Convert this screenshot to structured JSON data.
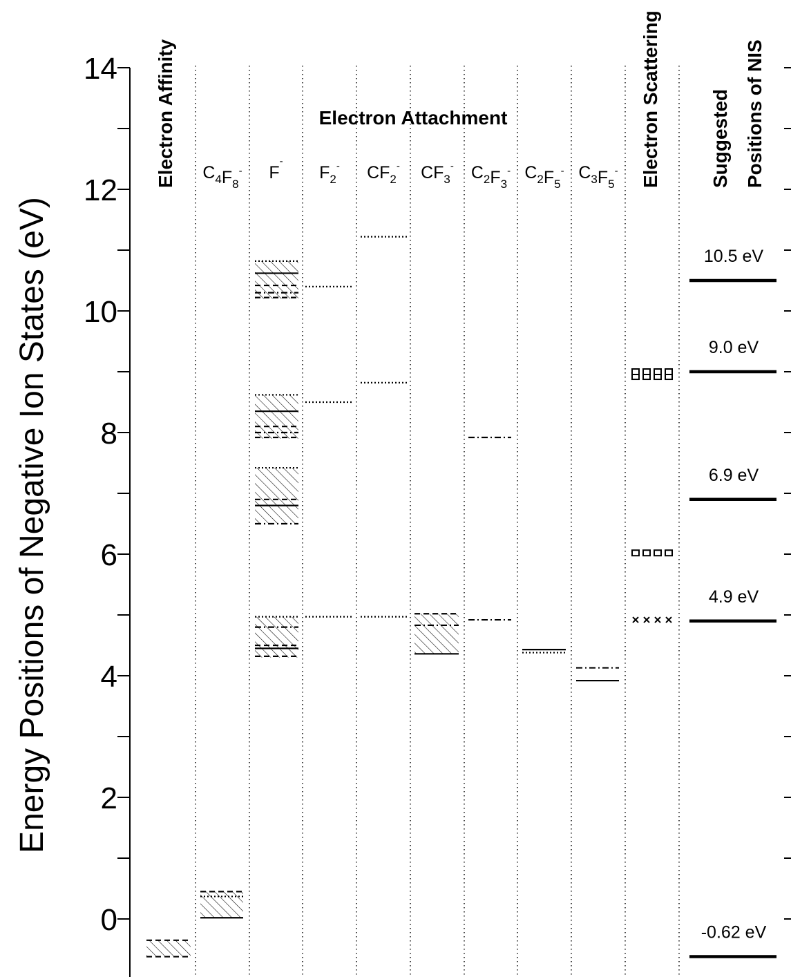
{
  "chart_data": {
    "type": "level-diagram",
    "ylabel": "Energy Positions of Negative Ion States (eV)",
    "ylim": [
      -0.9,
      14.0
    ],
    "yticks": [
      0,
      2,
      4,
      6,
      8,
      10,
      12,
      14
    ],
    "y_tick_labels": [
      "0",
      "2",
      "4",
      "6",
      "8",
      "10",
      "12",
      "14"
    ],
    "group_header": "Electron Attachment",
    "columns": [
      {
        "id": "affinity",
        "label": "Electron Affinity",
        "vertical": true,
        "bold": true
      },
      {
        "id": "c4f8",
        "label": [
          [
            "C",
            ""
          ],
          [
            "4",
            "sub"
          ],
          [
            "F",
            ""
          ],
          [
            "8",
            "sub"
          ],
          [
            "-",
            "sup"
          ]
        ]
      },
      {
        "id": "f",
        "label": [
          [
            "F",
            ""
          ],
          [
            "-",
            "sup"
          ]
        ]
      },
      {
        "id": "f2",
        "label": [
          [
            "F",
            ""
          ],
          [
            "2",
            "sub"
          ],
          [
            "-",
            "sup"
          ]
        ]
      },
      {
        "id": "cf2",
        "label": [
          [
            "CF",
            ""
          ],
          [
            "2",
            "sub"
          ],
          [
            "-",
            "sup"
          ]
        ]
      },
      {
        "id": "cf3",
        "label": [
          [
            "CF",
            ""
          ],
          [
            "3",
            "sub"
          ],
          [
            "-",
            "sup"
          ]
        ]
      },
      {
        "id": "c2f3",
        "label": [
          [
            "C",
            ""
          ],
          [
            "2",
            "sub"
          ],
          [
            "F",
            ""
          ],
          [
            "3",
            "sub"
          ],
          [
            "-",
            "sup"
          ]
        ]
      },
      {
        "id": "c2f5",
        "label": [
          [
            "C",
            ""
          ],
          [
            "2",
            "sub"
          ],
          [
            "F",
            ""
          ],
          [
            "5",
            "sub"
          ],
          [
            "-",
            "sup"
          ]
        ]
      },
      {
        "id": "c3f5",
        "label": [
          [
            "C",
            ""
          ],
          [
            "3",
            "sub"
          ],
          [
            "F",
            ""
          ],
          [
            "5",
            "sub"
          ],
          [
            "-",
            "sup"
          ]
        ]
      },
      {
        "id": "scatter",
        "label": "Electron Scattering",
        "vertical": true,
        "bold": true
      },
      {
        "id": "nis",
        "label": [
          "Suggested",
          "Positions of NIS"
        ],
        "vertical": true,
        "bold": true
      }
    ],
    "bands": [
      {
        "column": "affinity",
        "from": -0.62,
        "to": -0.35
      },
      {
        "column": "c4f8",
        "from": 0.02,
        "to": 0.45
      },
      {
        "column": "f",
        "from": 10.2,
        "to": 10.82
      },
      {
        "column": "f",
        "from": 7.9,
        "to": 8.62
      },
      {
        "column": "f",
        "from": 6.5,
        "to": 7.42
      },
      {
        "column": "f",
        "from": 4.3,
        "to": 4.97
      },
      {
        "column": "cf3",
        "from": 4.36,
        "to": 5.02
      }
    ],
    "levels": [
      {
        "column": "affinity",
        "value": -0.62,
        "style": "dashed"
      },
      {
        "column": "affinity",
        "value": -0.35,
        "style": "dashed"
      },
      {
        "column": "c4f8",
        "value": 0.02,
        "style": "solid"
      },
      {
        "column": "c4f8",
        "value": 0.45,
        "style": "dashed"
      },
      {
        "column": "c4f8",
        "value": 0.37,
        "style": "dotted"
      },
      {
        "column": "f",
        "value": 10.62,
        "style": "solid"
      },
      {
        "column": "f",
        "value": 10.42,
        "style": "dashed"
      },
      {
        "column": "f",
        "value": 10.3,
        "style": "dashdot"
      },
      {
        "column": "f",
        "value": 10.22,
        "style": "dashed"
      },
      {
        "column": "f",
        "value": 10.82,
        "style": "dotted"
      },
      {
        "column": "f",
        "value": 8.35,
        "style": "solid"
      },
      {
        "column": "f",
        "value": 8.1,
        "style": "dashed"
      },
      {
        "column": "f",
        "value": 8.0,
        "style": "dashdot"
      },
      {
        "column": "f",
        "value": 7.92,
        "style": "dashed"
      },
      {
        "column": "f",
        "value": 8.62,
        "style": "dotted"
      },
      {
        "column": "f",
        "value": 6.8,
        "style": "solid"
      },
      {
        "column": "f",
        "value": 6.9,
        "style": "dashed"
      },
      {
        "column": "f",
        "value": 6.5,
        "style": "dashdot"
      },
      {
        "column": "f",
        "value": 7.42,
        "style": "dotted"
      },
      {
        "column": "f",
        "value": 4.45,
        "style": "solid"
      },
      {
        "column": "f",
        "value": 4.5,
        "style": "dashed"
      },
      {
        "column": "f",
        "value": 4.8,
        "style": "dashdot"
      },
      {
        "column": "f",
        "value": 4.32,
        "style": "dashed"
      },
      {
        "column": "f",
        "value": 4.97,
        "style": "dotted"
      },
      {
        "column": "f2",
        "value": 10.4,
        "style": "dotted"
      },
      {
        "column": "f2",
        "value": 8.5,
        "style": "dotted"
      },
      {
        "column": "f2",
        "value": 4.97,
        "style": "dotted"
      },
      {
        "column": "cf2",
        "value": 11.22,
        "style": "dotted"
      },
      {
        "column": "cf2",
        "value": 8.82,
        "style": "dotted"
      },
      {
        "column": "cf2",
        "value": 4.97,
        "style": "dotted"
      },
      {
        "column": "cf3",
        "value": 4.36,
        "style": "solid"
      },
      {
        "column": "cf3",
        "value": 5.02,
        "style": "dashed"
      },
      {
        "column": "cf3",
        "value": 4.83,
        "style": "dashdot"
      },
      {
        "column": "c2f3",
        "value": 7.92,
        "style": "dashdot"
      },
      {
        "column": "c2f3",
        "value": 4.92,
        "style": "dashdot"
      },
      {
        "column": "c2f5",
        "value": 4.43,
        "style": "solid"
      },
      {
        "column": "c2f5",
        "value": 4.38,
        "style": "dotted"
      },
      {
        "column": "c3f5",
        "value": 3.92,
        "style": "solid"
      },
      {
        "column": "c3f5",
        "value": 4.13,
        "style": "dashdot"
      },
      {
        "column": "nis",
        "value": 10.5,
        "style": "thick"
      },
      {
        "column": "nis",
        "value": 9.0,
        "style": "thick"
      },
      {
        "column": "nis",
        "value": 6.9,
        "style": "thick"
      },
      {
        "column": "nis",
        "value": 4.9,
        "style": "thick"
      },
      {
        "column": "nis",
        "value": -0.62,
        "style": "thick"
      }
    ],
    "scattering_markers": [
      {
        "value": 8.92,
        "marker": "square",
        "count": 4
      },
      {
        "value": 9.0,
        "marker": "square",
        "count": 4
      },
      {
        "value": 6.02,
        "marker": "square",
        "count": 4
      },
      {
        "value": 4.92,
        "marker": "cross",
        "count": 4
      }
    ],
    "nis_labels": [
      {
        "value": 10.5,
        "text": "10.5 eV"
      },
      {
        "value": 9.0,
        "text": "9.0 eV"
      },
      {
        "value": 6.9,
        "text": "6.9 eV"
      },
      {
        "value": 4.9,
        "text": "4.9 eV"
      },
      {
        "value": -0.62,
        "text": "-0.62 eV"
      }
    ],
    "grid": false
  }
}
